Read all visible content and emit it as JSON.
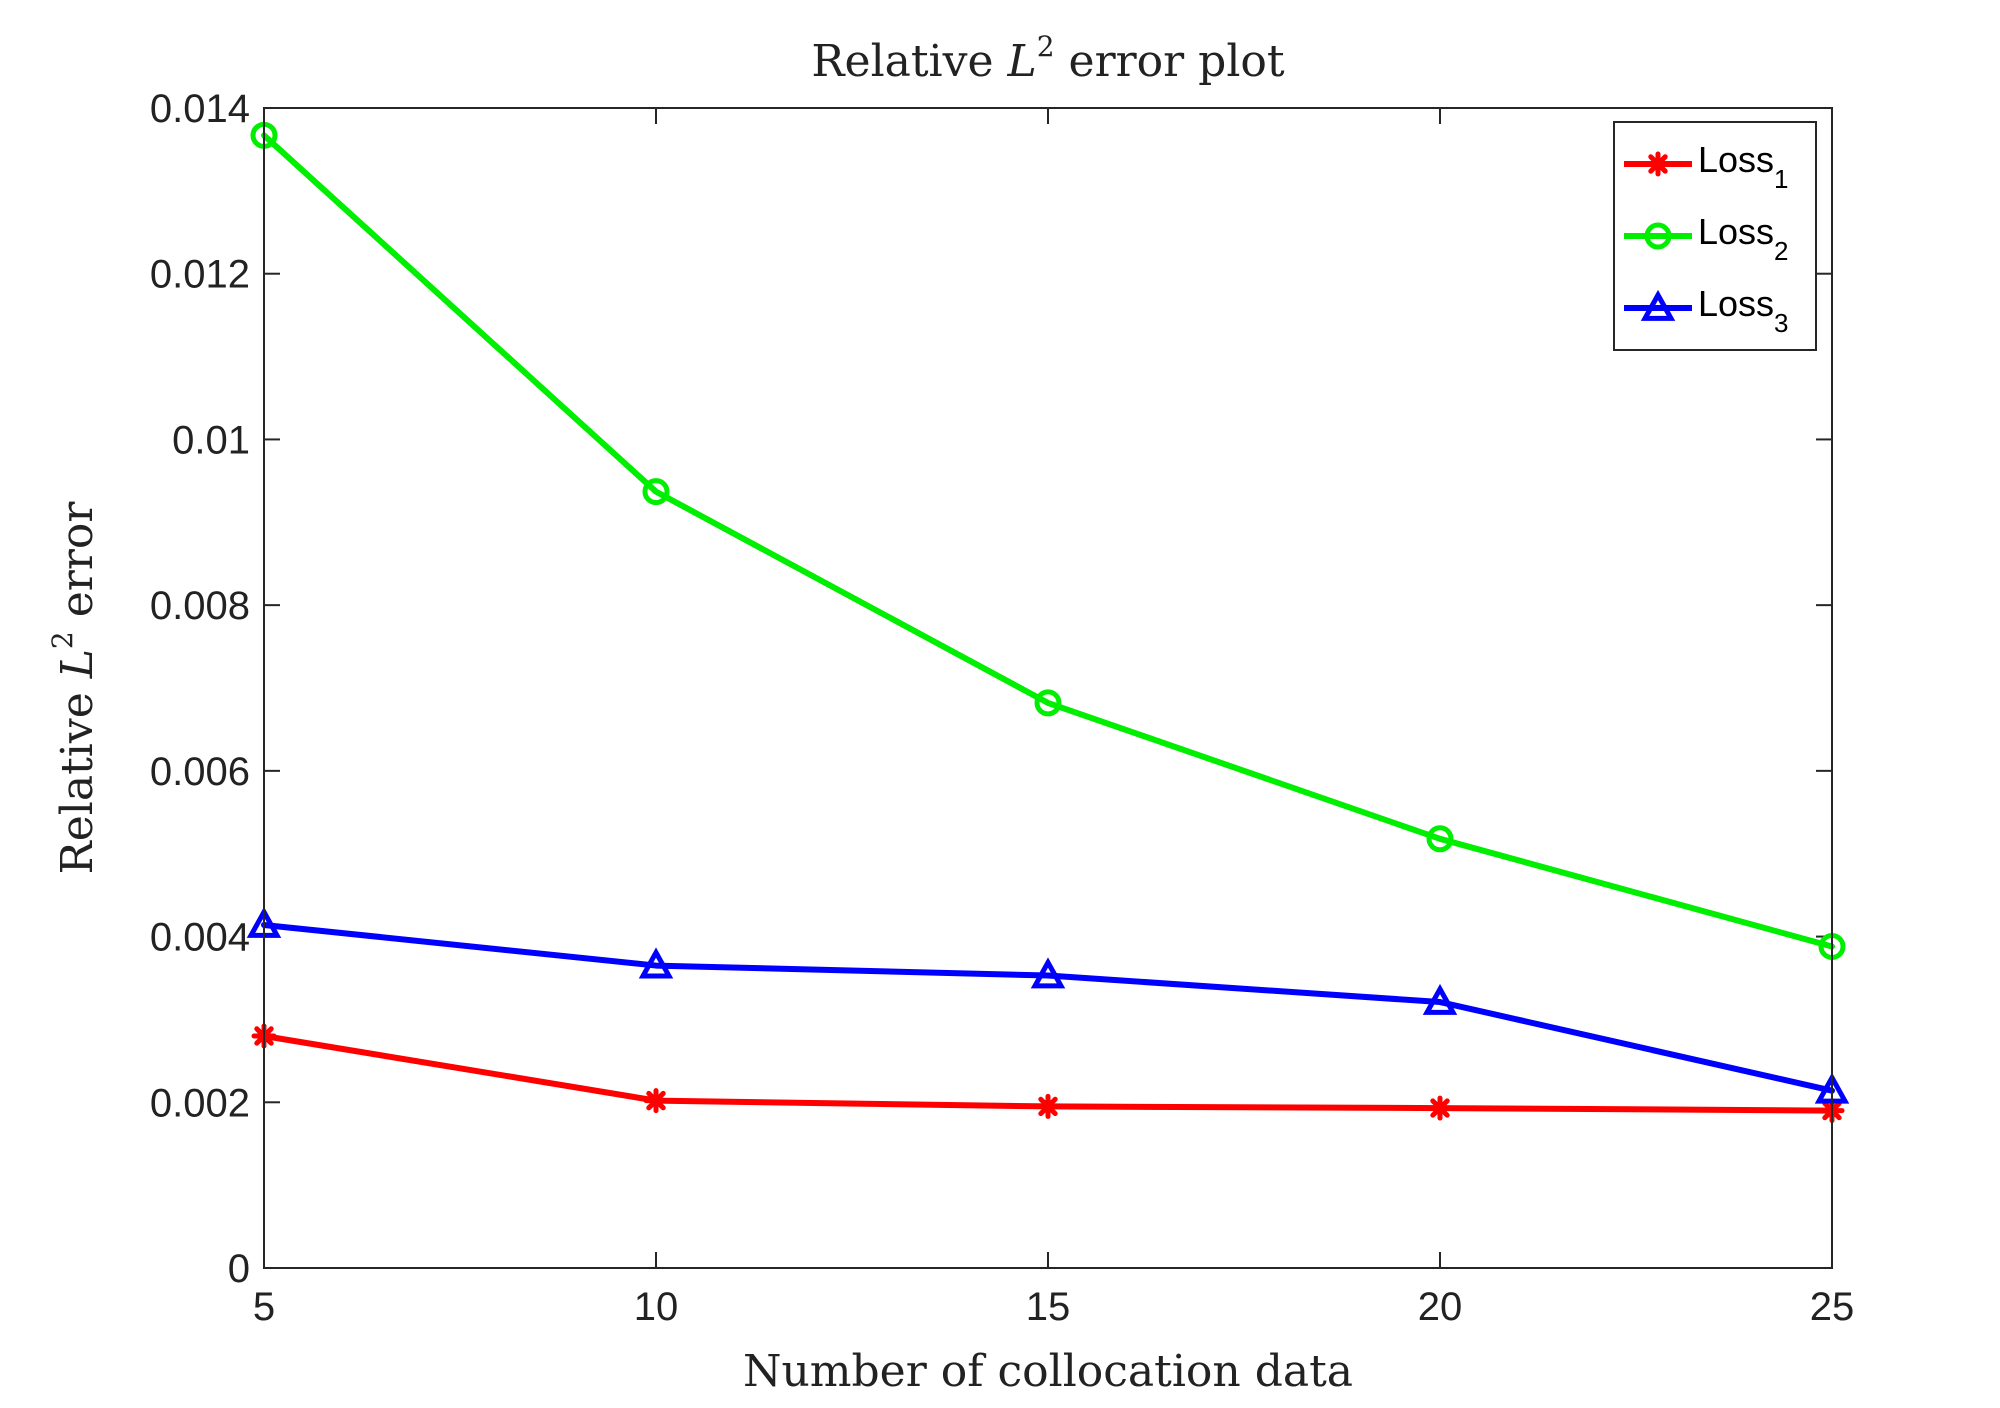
{
  "chart_data": {
    "type": "line",
    "title": {
      "before": "Relative ",
      "var": "L",
      "sup": "2",
      "after": " error plot"
    },
    "xlabel": "Number of collocation data",
    "ylabel": {
      "before": "Relative ",
      "var": "L",
      "sup": "2",
      "after": " error"
    },
    "x": [
      5,
      10,
      15,
      20,
      25
    ],
    "xlim": [
      5,
      25
    ],
    "ylim": [
      0,
      0.014
    ],
    "xticks": [
      5,
      10,
      15,
      20,
      25
    ],
    "xtick_labels": [
      "5",
      "10",
      "15",
      "20",
      "25"
    ],
    "yticks": [
      0,
      0.002,
      0.004,
      0.006,
      0.008,
      0.01,
      0.012,
      0.014
    ],
    "ytick_labels": [
      "0",
      "0.002",
      "0.004",
      "0.006",
      "0.008",
      "0.01",
      "0.012",
      "0.014"
    ],
    "grid": false,
    "legend_position": "top-right",
    "series": [
      {
        "name": "Loss",
        "subscript": "1",
        "color": "#ff0000",
        "marker": "asterisk",
        "values": [
          0.0028,
          0.00202,
          0.00195,
          0.00193,
          0.0019
        ]
      },
      {
        "name": "Loss",
        "subscript": "2",
        "color": "#00ee00",
        "marker": "circle",
        "values": [
          0.01367,
          0.00937,
          0.00682,
          0.00518,
          0.00388
        ]
      },
      {
        "name": "Loss",
        "subscript": "3",
        "color": "#0000ff",
        "marker": "triangle",
        "values": [
          0.00414,
          0.00365,
          0.00353,
          0.00321,
          0.00214
        ]
      }
    ]
  }
}
